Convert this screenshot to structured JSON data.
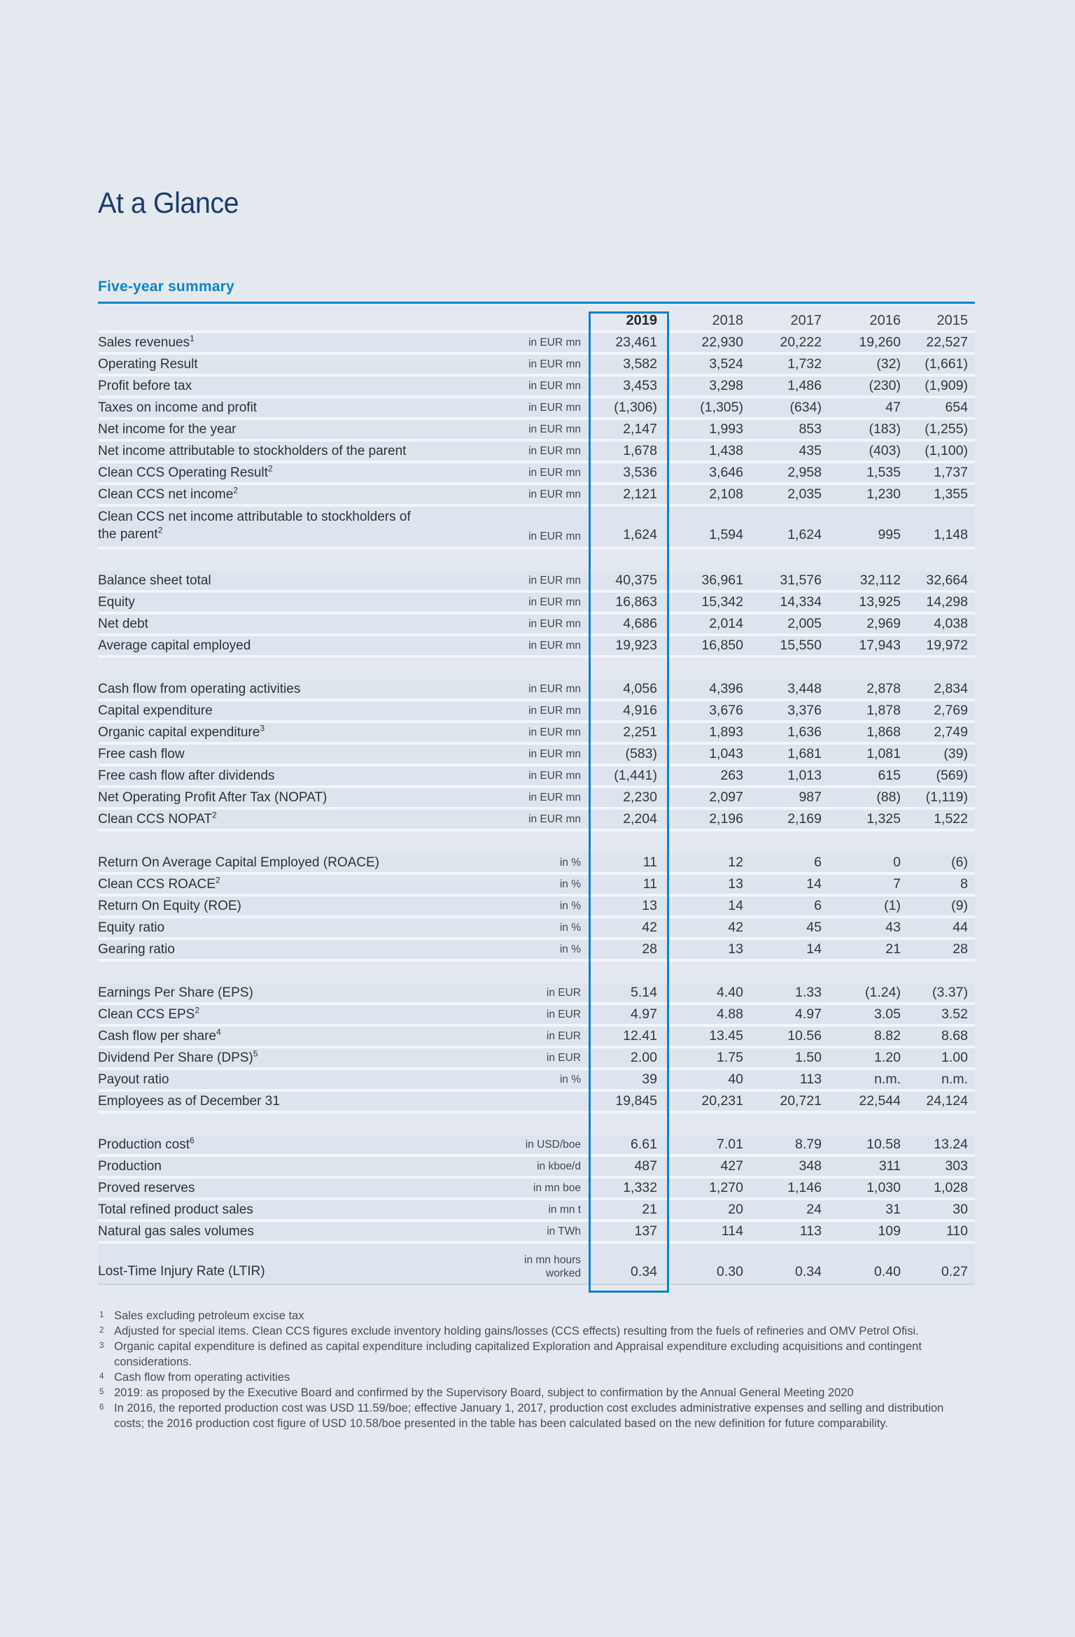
{
  "page": {
    "title": "At a Glance",
    "section_heading": "Five-year summary"
  },
  "colors": {
    "page_bg": "#e4e9f0",
    "row_bg": "#dce4ee",
    "row_separator": "#f2f6fa",
    "accent_blue": "#0e82c8",
    "title_navy": "#1d3c6e",
    "text_dark": "#34383c",
    "unit_gray": "#44484d",
    "table_bottom_rule": "#c8d1dc"
  },
  "table": {
    "years": [
      "2019",
      "2018",
      "2017",
      "2016",
      "2015"
    ],
    "highlighted_year": "2019",
    "groups": [
      {
        "rows": [
          {
            "label": "Sales revenues",
            "sup": "1",
            "unit": "in EUR mn",
            "values": [
              "23,461",
              "22,930",
              "20,222",
              "19,260",
              "22,527"
            ]
          },
          {
            "label": "Operating Result",
            "sup": "",
            "unit": "in EUR mn",
            "values": [
              "3,582",
              "3,524",
              "1,732",
              "(32)",
              "(1,661)"
            ]
          },
          {
            "label": "Profit before tax",
            "sup": "",
            "unit": "in EUR mn",
            "values": [
              "3,453",
              "3,298",
              "1,486",
              "(230)",
              "(1,909)"
            ]
          },
          {
            "label": "Taxes on income and profit",
            "sup": "",
            "unit": "in EUR mn",
            "values": [
              "(1,306)",
              "(1,305)",
              "(634)",
              "47",
              "654"
            ]
          },
          {
            "label": "Net income for the year",
            "sup": "",
            "unit": "in EUR mn",
            "values": [
              "2,147",
              "1,993",
              "853",
              "(183)",
              "(1,255)"
            ]
          },
          {
            "label": "Net income attributable to stockholders of the parent",
            "sup": "",
            "unit": "in EUR mn",
            "values": [
              "1,678",
              "1,438",
              "435",
              "(403)",
              "(1,100)"
            ]
          },
          {
            "label": "Clean CCS Operating Result",
            "sup": "2",
            "unit": "in EUR mn",
            "values": [
              "3,536",
              "3,646",
              "2,958",
              "1,535",
              "1,737"
            ]
          },
          {
            "label": "Clean CCS net income",
            "sup": "2",
            "unit": "in EUR mn",
            "values": [
              "2,121",
              "2,108",
              "2,035",
              "1,230",
              "1,355"
            ]
          },
          {
            "label": "Clean CCS net income attributable to stockholders of\nthe parent",
            "sup": "2",
            "unit": "in EUR mn",
            "values": [
              "1,624",
              "1,594",
              "1,624",
              "995",
              "1,148"
            ]
          }
        ]
      },
      {
        "rows": [
          {
            "label": "Balance sheet total",
            "sup": "",
            "unit": "in EUR mn",
            "values": [
              "40,375",
              "36,961",
              "31,576",
              "32,112",
              "32,664"
            ]
          },
          {
            "label": "Equity",
            "sup": "",
            "unit": "in EUR mn",
            "values": [
              "16,863",
              "15,342",
              "14,334",
              "13,925",
              "14,298"
            ]
          },
          {
            "label": "Net debt",
            "sup": "",
            "unit": "in EUR mn",
            "values": [
              "4,686",
              "2,014",
              "2,005",
              "2,969",
              "4,038"
            ]
          },
          {
            "label": "Average capital employed",
            "sup": "",
            "unit": "in EUR mn",
            "values": [
              "19,923",
              "16,850",
              "15,550",
              "17,943",
              "19,972"
            ]
          }
        ]
      },
      {
        "rows": [
          {
            "label": "Cash flow from operating activities",
            "sup": "",
            "unit": "in EUR mn",
            "values": [
              "4,056",
              "4,396",
              "3,448",
              "2,878",
              "2,834"
            ]
          },
          {
            "label": "Capital expenditure",
            "sup": "",
            "unit": "in EUR mn",
            "values": [
              "4,916",
              "3,676",
              "3,376",
              "1,878",
              "2,769"
            ]
          },
          {
            "label": "Organic capital expenditure",
            "sup": "3",
            "unit": "in EUR mn",
            "values": [
              "2,251",
              "1,893",
              "1,636",
              "1,868",
              "2,749"
            ]
          },
          {
            "label": "Free cash flow",
            "sup": "",
            "unit": "in EUR mn",
            "values": [
              "(583)",
              "1,043",
              "1,681",
              "1,081",
              "(39)"
            ]
          },
          {
            "label": "Free cash flow after dividends",
            "sup": "",
            "unit": "in EUR mn",
            "values": [
              "(1,441)",
              "263",
              "1,013",
              "615",
              "(569)"
            ]
          },
          {
            "label": "Net Operating Profit After Tax (NOPAT)",
            "sup": "",
            "unit": "in EUR mn",
            "values": [
              "2,230",
              "2,097",
              "987",
              "(88)",
              "(1,119)"
            ]
          },
          {
            "label": "Clean CCS NOPAT",
            "sup": "2",
            "unit": "in EUR mn",
            "values": [
              "2,204",
              "2,196",
              "2,169",
              "1,325",
              "1,522"
            ]
          }
        ]
      },
      {
        "rows": [
          {
            "label": "Return On Average Capital Employed (ROACE)",
            "sup": "",
            "unit": "in %",
            "values": [
              "11",
              "12",
              "6",
              "0",
              "(6)"
            ]
          },
          {
            "label": "Clean CCS ROACE",
            "sup": "2",
            "unit": "in %",
            "values": [
              "11",
              "13",
              "14",
              "7",
              "8"
            ]
          },
          {
            "label": "Return On Equity (ROE)",
            "sup": "",
            "unit": "in %",
            "values": [
              "13",
              "14",
              "6",
              "(1)",
              "(9)"
            ]
          },
          {
            "label": "Equity ratio",
            "sup": "",
            "unit": "in %",
            "values": [
              "42",
              "42",
              "45",
              "43",
              "44"
            ]
          },
          {
            "label": "Gearing ratio",
            "sup": "",
            "unit": "in %",
            "values": [
              "28",
              "13",
              "14",
              "21",
              "28"
            ]
          }
        ]
      },
      {
        "rows": [
          {
            "label": "Earnings Per Share (EPS)",
            "sup": "",
            "unit": "in EUR",
            "values": [
              "5.14",
              "4.40",
              "1.33",
              "(1.24)",
              "(3.37)"
            ]
          },
          {
            "label": "Clean CCS EPS",
            "sup": "2",
            "unit": "in EUR",
            "values": [
              "4.97",
              "4.88",
              "4.97",
              "3.05",
              "3.52"
            ]
          },
          {
            "label": "Cash flow per share",
            "sup": "4",
            "unit": "in EUR",
            "values": [
              "12.41",
              "13.45",
              "10.56",
              "8.82",
              "8.68"
            ]
          },
          {
            "label": "Dividend Per Share (DPS)",
            "sup": "5",
            "unit": "in EUR",
            "values": [
              "2.00",
              "1.75",
              "1.50",
              "1.20",
              "1.00"
            ]
          },
          {
            "label": "Payout ratio",
            "sup": "",
            "unit": "in %",
            "values": [
              "39",
              "40",
              "113",
              "n.m.",
              "n.m."
            ]
          },
          {
            "label": "Employees as of December 31",
            "sup": "",
            "unit": "",
            "values": [
              "19,845",
              "20,231",
              "20,721",
              "22,544",
              "24,124"
            ]
          }
        ]
      },
      {
        "rows": [
          {
            "label": "Production cost",
            "sup": "6",
            "unit": "in USD/boe",
            "values": [
              "6.61",
              "7.01",
              "8.79",
              "10.58",
              "13.24"
            ]
          },
          {
            "label": "Production",
            "sup": "",
            "unit": "in kboe/d",
            "values": [
              "487",
              "427",
              "348",
              "311",
              "303"
            ]
          },
          {
            "label": "Proved reserves",
            "sup": "",
            "unit": "in mn boe",
            "values": [
              "1,332",
              "1,270",
              "1,146",
              "1,030",
              "1,028"
            ]
          },
          {
            "label": "Total refined product sales",
            "sup": "",
            "unit": "in mn t",
            "values": [
              "21",
              "20",
              "24",
              "31",
              "30"
            ]
          },
          {
            "label": "Natural gas sales volumes",
            "sup": "",
            "unit": "in TWh",
            "values": [
              "137",
              "114",
              "113",
              "109",
              "110"
            ]
          },
          {
            "label": "Lost-Time Injury Rate (LTIR)",
            "sup": "",
            "unit": "in mn hours\nworked",
            "values": [
              "0.34",
              "0.30",
              "0.34",
              "0.40",
              "0.27"
            ]
          }
        ]
      }
    ]
  },
  "footnotes": [
    {
      "sup": "1",
      "text": "Sales excluding petroleum excise tax"
    },
    {
      "sup": "2",
      "text": "Adjusted for special items. Clean CCS figures exclude inventory holding gains/losses (CCS effects) resulting from the fuels of refineries and OMV Petrol Ofisi."
    },
    {
      "sup": "3",
      "text": "Organic capital expenditure is defined as capital expenditure including capitalized Exploration and Appraisal expenditure excluding acquisitions and contingent considerations."
    },
    {
      "sup": "4",
      "text": "Cash flow from operating activities"
    },
    {
      "sup": "5",
      "text": "2019: as proposed by the Executive Board and confirmed by the Supervisory Board, subject to confirmation by the Annual General Meeting 2020"
    },
    {
      "sup": "6",
      "text": "In 2016, the reported production cost was USD 11.59/boe; effective January 1, 2017, production cost excludes administrative expenses and selling and distribution costs; the 2016 production cost figure of USD 10.58/boe presented in the table has been calculated based on the new definition for future comparability."
    }
  ]
}
